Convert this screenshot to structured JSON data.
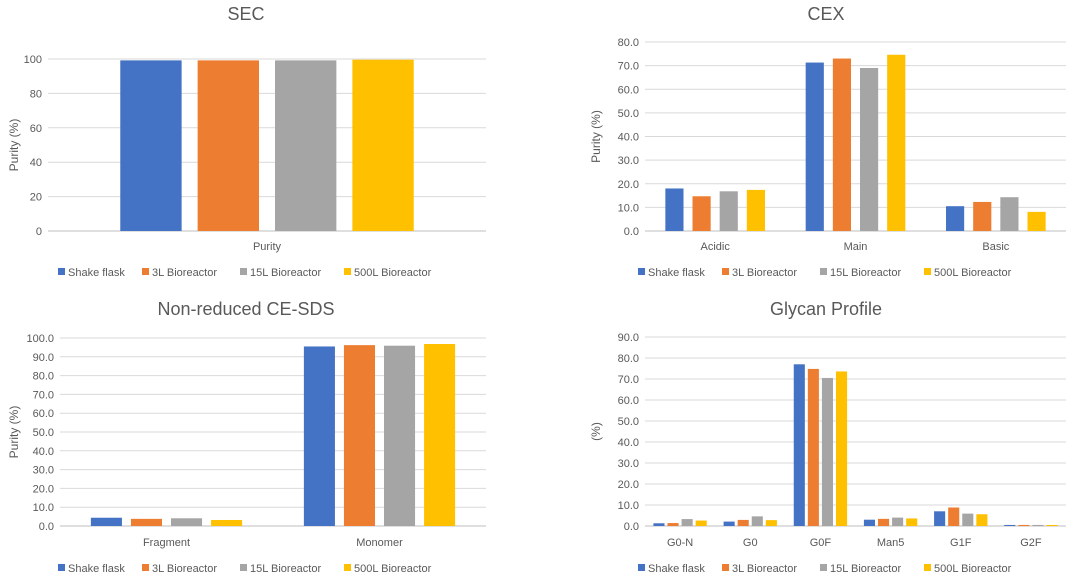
{
  "legend_colors": [
    "#4472c4",
    "#ed7d31",
    "#a5a5a5",
    "#ffc000"
  ],
  "chart_data": [
    {
      "type": "bar",
      "title": "SEC",
      "ylabel": "Purity (%)",
      "xlabel": "",
      "ylim": [
        0,
        100
      ],
      "ytick_step": 20,
      "ytick_labels": [
        "0",
        "20",
        "40",
        "60",
        "80",
        "100"
      ],
      "categories": [
        "Purity"
      ],
      "series": [
        {
          "name": "Shake flask",
          "values": [
            99.2
          ]
        },
        {
          "name": "3L Bioreactor",
          "values": [
            99.2
          ]
        },
        {
          "name": "15L Bioreactor",
          "values": [
            99.2
          ]
        },
        {
          "name": "500L Bioreactor",
          "values": [
            99.6
          ]
        }
      ],
      "legend_position": "bottom",
      "grid": true
    },
    {
      "type": "bar",
      "title": "CEX",
      "ylabel": "Purity (%)",
      "xlabel": "",
      "ylim": [
        0,
        80
      ],
      "ytick_step": 10,
      "ytick_labels": [
        "0.0",
        "10.0",
        "20.0",
        "30.0",
        "40.0",
        "50.0",
        "60.0",
        "70.0",
        "80.0"
      ],
      "categories": [
        "Acidic",
        "Main",
        "Basic"
      ],
      "series": [
        {
          "name": "Shake flask",
          "values": [
            18.0,
            71.3,
            10.5
          ]
        },
        {
          "name": "3L Bioreactor",
          "values": [
            14.7,
            73.0,
            12.3
          ]
        },
        {
          "name": "15L Bioreactor",
          "values": [
            16.8,
            69.0,
            14.3
          ]
        },
        {
          "name": "500L Bioreactor",
          "values": [
            17.4,
            74.6,
            8.1
          ]
        }
      ],
      "legend_position": "bottom",
      "grid": true
    },
    {
      "type": "bar",
      "title": "Non-reduced CE-SDS",
      "ylabel": "Purity (%)",
      "xlabel": "",
      "ylim": [
        0,
        100
      ],
      "ytick_step": 10,
      "ytick_labels": [
        "0.0",
        "10.0",
        "20.0",
        "30.0",
        "40.0",
        "50.0",
        "60.0",
        "70.0",
        "80.0",
        "90.0",
        "100.0"
      ],
      "categories": [
        "Fragment",
        "Monomer"
      ],
      "series": [
        {
          "name": "Shake flask",
          "values": [
            4.4,
            95.5
          ]
        },
        {
          "name": "3L Bioreactor",
          "values": [
            3.8,
            96.2
          ]
        },
        {
          "name": "15L Bioreactor",
          "values": [
            4.1,
            95.9
          ]
        },
        {
          "name": "500L Bioreactor",
          "values": [
            3.2,
            96.8
          ]
        }
      ],
      "legend_position": "bottom",
      "grid": true
    },
    {
      "type": "bar",
      "title": "Glycan Profile",
      "ylabel": "(%)",
      "xlabel": "",
      "ylim": [
        0,
        90
      ],
      "ytick_step": 10,
      "ytick_labels": [
        "0.0",
        "10.0",
        "20.0",
        "30.0",
        "40.0",
        "50.0",
        "60.0",
        "70.0",
        "80.0",
        "90.0"
      ],
      "categories": [
        "G0-N",
        "G0",
        "G0F",
        "Man5",
        "G1F",
        "G2F"
      ],
      "series": [
        {
          "name": "Shake flask",
          "values": [
            1.3,
            2.1,
            77.0,
            3.0,
            7.0,
            0.5
          ]
        },
        {
          "name": "3L Bioreactor",
          "values": [
            1.4,
            2.9,
            74.8,
            3.4,
            8.8,
            0.5
          ]
        },
        {
          "name": "15L Bioreactor",
          "values": [
            3.3,
            4.6,
            70.5,
            4.0,
            5.9,
            0.5
          ]
        },
        {
          "name": "500L Bioreactor",
          "values": [
            2.6,
            2.8,
            73.6,
            3.6,
            5.6,
            0.5
          ]
        }
      ],
      "legend_position": "bottom",
      "grid": true
    }
  ]
}
